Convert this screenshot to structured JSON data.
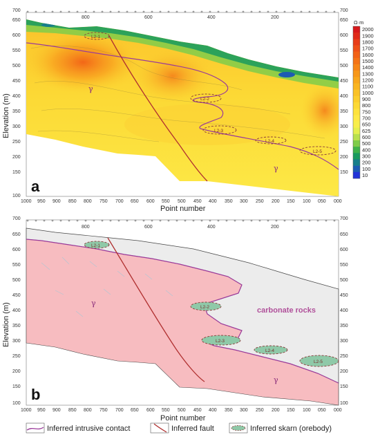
{
  "panel_a": {
    "letter": "a",
    "units": "Ω·m",
    "colorbar_ticks": [
      "2000",
      "1900",
      "1800",
      "1700",
      "1600",
      "1500",
      "1400",
      "1300",
      "1200",
      "1100",
      "1000",
      "900",
      "800",
      "750",
      "700",
      "650",
      "625",
      "600",
      "500",
      "400",
      "300",
      "200",
      "100",
      "10"
    ],
    "colorbar_colors": [
      "#d7191c",
      "#e02a1a",
      "#e83c18",
      "#ee4f17",
      "#f26116",
      "#f47316",
      "#f68517",
      "#f79719",
      "#f8a71c",
      "#f9b520",
      "#fac226",
      "#fbce2d",
      "#fcd935",
      "#fde23d",
      "#fde947",
      "#f7ee4b",
      "#e3ef4e",
      "#b8e04d",
      "#7fcc4a",
      "#3fb24a",
      "#1a9a5e",
      "#177e8a",
      "#1d5bb3",
      "#2233d9"
    ],
    "ore_labels": [
      "L2-1",
      "L2-2",
      "L2-3",
      "L2-4",
      "L2-5"
    ],
    "gamma": "γ"
  },
  "panel_b": {
    "letter": "b",
    "carbonate_label": "carbonate rocks",
    "ore_labels": [
      "L2-1",
      "L2-2",
      "L2-3",
      "L2-4",
      "L2-5"
    ],
    "gamma": "γ"
  },
  "axes": {
    "y_label": "Elevation (m)",
    "x_label": "Point number",
    "x_ticks": [
      "1000",
      "950",
      "900",
      "850",
      "800",
      "750",
      "700",
      "650",
      "600",
      "550",
      "500",
      "450",
      "400",
      "350",
      "300",
      "250",
      "200",
      "150",
      "100",
      "050",
      "000"
    ],
    "y_ticks": [
      "700",
      "650",
      "600",
      "550",
      "500",
      "450",
      "400",
      "350",
      "300",
      "250",
      "200",
      "150",
      "100"
    ],
    "top_ticks": [
      "800",
      "600",
      "400",
      "200"
    ]
  },
  "legend": {
    "contact": "Inferred intrusive contact",
    "fault": "Inferred fault",
    "skarn": "Inferred skarn (orebody)"
  },
  "colors": {
    "intrusion_pink": "#f7bcc0",
    "carbonate_grey": "#ececec",
    "contact_line": "#9a3a9a",
    "fault_line": "#b03030",
    "ore_fill": "#8fc9a8"
  }
}
